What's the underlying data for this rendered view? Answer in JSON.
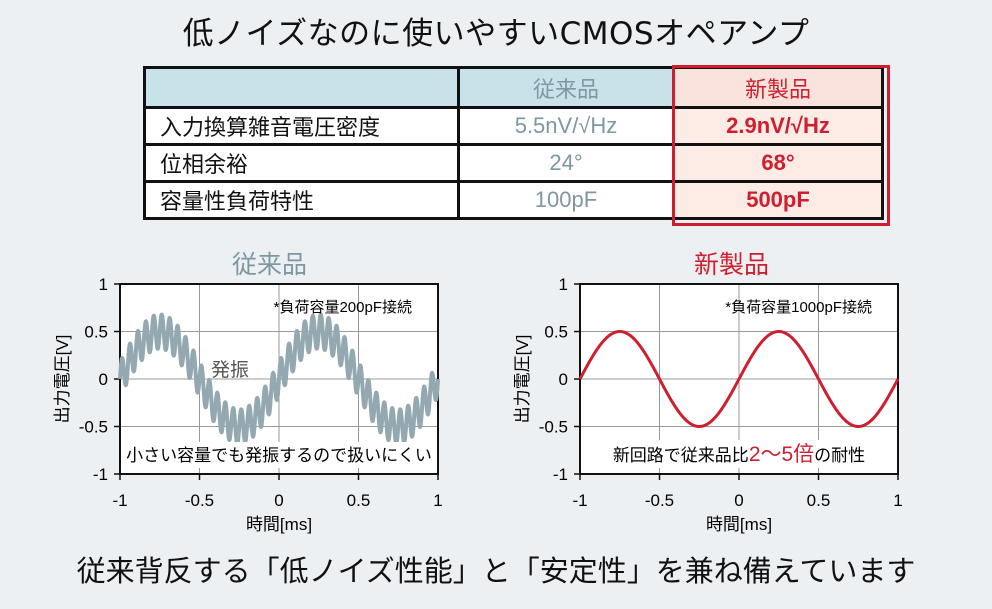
{
  "title": "低ノイズなのに使いやすいCMOSオペアンプ",
  "table": {
    "headers": [
      "",
      "従来品",
      "新製品"
    ],
    "rows": [
      {
        "label": "入力換算雑音電圧密度",
        "old": "5.5nV/√Hz",
        "new": "2.9nV/√Hz"
      },
      {
        "label": "位相余裕",
        "old": "24°",
        "new": "68°"
      },
      {
        "label": "容量性負荷特性",
        "old": "100pF",
        "new": "500pF"
      }
    ]
  },
  "chart_data": [
    {
      "type": "line",
      "title": "従来品",
      "xlabel": "時間[ms]",
      "ylabel": "出力電圧[V]",
      "xlim": [
        -1,
        1
      ],
      "ylim": [
        -1,
        1
      ],
      "xticks": [
        "-1",
        "-0.5",
        "0",
        "0.5",
        "1"
      ],
      "yticks": [
        "1",
        "0.5",
        "0",
        "-0.5",
        "-1"
      ],
      "grid": true,
      "series": [
        {
          "amplitude": 0.5,
          "period_ms": 1,
          "phase": "sin",
          "oscillation_amplitude": 0.18,
          "oscillation_cycles_per_ms": 20,
          "color": "#93a8b0"
        }
      ],
      "annotations": [
        "*負荷容量200pF接続",
        "発振",
        "小さい容量でも発振するので扱いにくい"
      ]
    },
    {
      "type": "line",
      "title": "新製品",
      "xlabel": "時間[ms]",
      "ylabel": "出力電圧[V]",
      "xlim": [
        -1,
        1
      ],
      "ylim": [
        -1,
        1
      ],
      "xticks": [
        "-1",
        "-0.5",
        "0",
        "0.5",
        "1"
      ],
      "yticks": [
        "1",
        "0.5",
        "0",
        "-0.5",
        "-1"
      ],
      "grid": true,
      "series": [
        {
          "amplitude": 0.5,
          "period_ms": 1,
          "phase": "sin",
          "oscillation_amplitude": 0,
          "color": "#cf1f2f"
        }
      ],
      "annotations": [
        "*負荷容量1000pF接続"
      ],
      "note": {
        "pre": "新回路で従来品比",
        "highlight": "2〜5倍",
        "post": "の耐性"
      }
    }
  ],
  "colors": {
    "old": "#7e97a2",
    "new": "#cf1f2f",
    "old_wave": "#93a8b0"
  },
  "footer": "従来背反する「低ノイズ性能」と「安定性」を兼ね備えています"
}
